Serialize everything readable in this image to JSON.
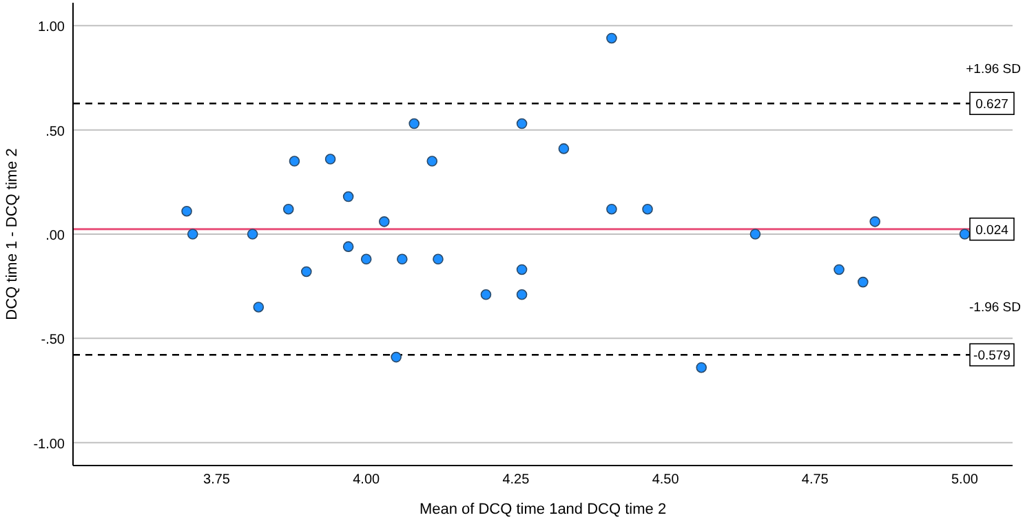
{
  "chart_data": {
    "type": "scatter",
    "xlabel": "Mean of DCQ time 1and DCQ time 2",
    "ylabel": "DCQ time 1 - DCQ time 2",
    "xlim": [
      3.51,
      5.08
    ],
    "ylim": [
      -1.11,
      1.11
    ],
    "xticks": [
      {
        "value": 3.75,
        "label": "3.75"
      },
      {
        "value": 4,
        "label": "4.00"
      },
      {
        "value": 4.25,
        "label": "4.25"
      },
      {
        "value": 4.5,
        "label": "4.50"
      },
      {
        "value": 4.75,
        "label": "4.75"
      },
      {
        "value": 5,
        "label": "5.00"
      }
    ],
    "yticks": [
      {
        "value": -1,
        "label": "-1.00"
      },
      {
        "value": -0.5,
        "label": "-.50"
      },
      {
        "value": 0,
        "label": ".00"
      },
      {
        "value": 0.5,
        "label": ".50"
      },
      {
        "value": 1,
        "label": "1.00"
      }
    ],
    "grid": "y",
    "marker": "circle",
    "series": [
      {
        "color": "#1e8fff",
        "x": [
          3.7,
          3.71,
          3.81,
          3.82,
          3.88,
          3.87,
          3.9,
          3.94,
          3.97,
          3.97,
          4.0,
          4.03,
          4.06,
          4.05,
          4.08,
          4.11,
          4.12,
          4.2,
          4.26,
          4.26,
          4.26,
          4.41,
          4.33,
          4.41,
          4.47,
          4.65,
          4.56,
          4.79,
          4.83,
          4.85,
          5.0
        ],
        "values": [
          0.11,
          0.0,
          0.0,
          -0.35,
          0.35,
          0.12,
          -0.18,
          0.36,
          0.18,
          -0.06,
          -0.12,
          0.06,
          -0.12,
          -0.59,
          0.53,
          0.35,
          -0.12,
          -0.29,
          0.53,
          -0.17,
          -0.29,
          0.94,
          0.41,
          0.12,
          0.12,
          0.0,
          -0.64,
          -0.17,
          -0.23,
          0.06,
          0.0
        ]
      }
    ],
    "ref_lines": [
      {
        "axis": "y",
        "value": 0.627,
        "label": "0.627",
        "color": "#000000",
        "line_style": "dashed"
      },
      {
        "axis": "y",
        "value": 0.024,
        "label": "0.024",
        "color": "#e8507a",
        "line_style": "solid"
      },
      {
        "axis": "y",
        "value": -0.579,
        "label": "-0.579",
        "color": "#000000",
        "line_style": "dashed"
      }
    ],
    "annotations": [
      "+1.96 SD",
      "-1.96 SD"
    ]
  }
}
